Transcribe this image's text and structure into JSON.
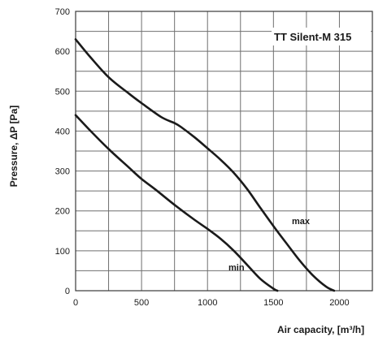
{
  "chart_data": {
    "type": "line",
    "title": "TT Silent-M 315",
    "xlabel": "Air capacity, [m³/h]",
    "ylabel": "Pressure, ΔP [Pa]",
    "xlim": [
      0,
      2250
    ],
    "ylim": [
      0,
      700
    ],
    "x_ticks": [
      0,
      500,
      1000,
      1500,
      2000
    ],
    "y_ticks": [
      0,
      100,
      200,
      300,
      400,
      500,
      600,
      700
    ],
    "x_grid_step": 250,
    "y_grid_step": 50,
    "grid": true,
    "series": [
      {
        "name": "max",
        "x": [
          0,
          100,
          250,
          400,
          500,
          650,
          750,
          800,
          900,
          1000,
          1100,
          1200,
          1300,
          1400,
          1500,
          1600,
          1700,
          1800,
          1900,
          1960
        ],
        "y": [
          630,
          590,
          535,
          495,
          470,
          435,
          420,
          410,
          385,
          357,
          328,
          295,
          255,
          208,
          162,
          118,
          75,
          38,
          10,
          0
        ]
      },
      {
        "name": "min",
        "x": [
          0,
          100,
          250,
          400,
          500,
          600,
          750,
          900,
          1000,
          1100,
          1200,
          1300,
          1400,
          1500,
          1530
        ],
        "y": [
          440,
          405,
          355,
          310,
          280,
          255,
          215,
          178,
          155,
          130,
          100,
          65,
          30,
          5,
          0
        ]
      }
    ]
  }
}
